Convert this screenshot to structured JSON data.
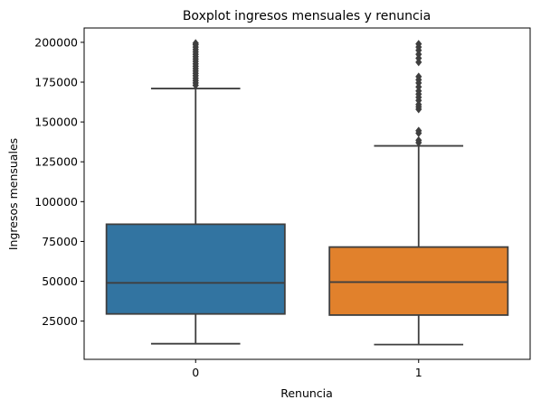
{
  "chart_data": {
    "type": "boxplot",
    "title": "Boxplot ingresos mensuales y renuncia",
    "xlabel": "Renuncia",
    "ylabel": "Ingresos mensuales",
    "ylim": [
      1000,
      209000
    ],
    "yticks": [
      25000,
      50000,
      75000,
      100000,
      125000,
      150000,
      175000,
      200000
    ],
    "grid": false,
    "categories": [
      "0",
      "1"
    ],
    "boxes": [
      {
        "category": "0",
        "color": "#3274a1",
        "whisker_low": 10800,
        "q1": 29500,
        "median": 49000,
        "q3": 85800,
        "whisker_high": 171000,
        "outliers": [
          173000,
          174500,
          176000,
          177500,
          179000,
          180500,
          182000,
          183500,
          185000,
          186500,
          188000,
          189500,
          191000,
          192500,
          194000,
          195500,
          197000,
          198500,
          199500
        ]
      },
      {
        "category": "1",
        "color": "#e1812c",
        "whisker_low": 10300,
        "q1": 28800,
        "median": 49500,
        "q3": 71500,
        "whisker_high": 135000,
        "outliers": [
          137000,
          138500,
          143000,
          144500,
          158000,
          159500,
          161000,
          163500,
          165500,
          167500,
          169500,
          172000,
          174500,
          176500,
          178500,
          187500,
          190000,
          192500,
          195000,
          197000,
          199000
        ]
      }
    ]
  }
}
